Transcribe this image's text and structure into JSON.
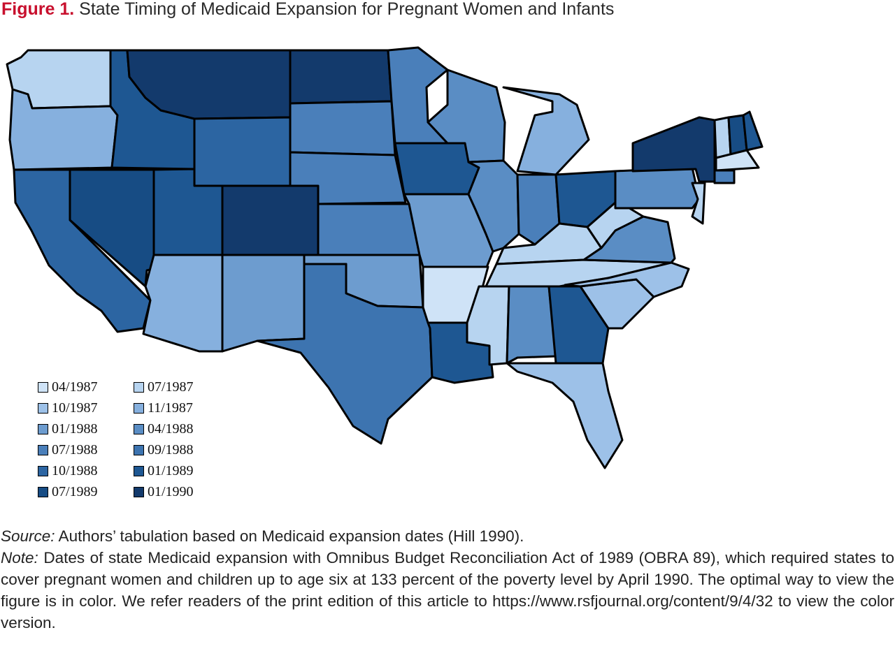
{
  "title": {
    "figure_label": "Figure 1.",
    "text": "State Timing of Medicaid Expansion for Pregnant Women and Infants"
  },
  "legend": [
    {
      "label": "04/1987",
      "color": "#cfe3f7"
    },
    {
      "label": "07/1987",
      "color": "#b7d4f0"
    },
    {
      "label": "10/1987",
      "color": "#9dc1e8"
    },
    {
      "label": "11/1987",
      "color": "#86b0de"
    },
    {
      "label": "01/1988",
      "color": "#6d9ccf"
    },
    {
      "label": "04/1988",
      "color": "#5a8dc4"
    },
    {
      "label": "07/1988",
      "color": "#4a7fba"
    },
    {
      "label": "09/1988",
      "color": "#3d74b0"
    },
    {
      "label": "10/1988",
      "color": "#2c65a2"
    },
    {
      "label": "01/1989",
      "color": "#1e5792"
    },
    {
      "label": "07/1989",
      "color": "#174c84"
    },
    {
      "label": "01/1990",
      "color": "#133a6c"
    }
  ],
  "states": [
    {
      "name": "WA",
      "date": "07/1987"
    },
    {
      "name": "OR",
      "date": "11/1987"
    },
    {
      "name": "CA",
      "date": "10/1988"
    },
    {
      "name": "ID",
      "date": "01/1989"
    },
    {
      "name": "NV",
      "date": "07/1989"
    },
    {
      "name": "MT",
      "date": "01/1990"
    },
    {
      "name": "WY",
      "date": "10/1988"
    },
    {
      "name": "UT",
      "date": "01/1989"
    },
    {
      "name": "CO",
      "date": "01/1990"
    },
    {
      "name": "AZ",
      "date": "11/1987"
    },
    {
      "name": "NM",
      "date": "01/1988"
    },
    {
      "name": "ND",
      "date": "01/1990"
    },
    {
      "name": "SD",
      "date": "07/1988"
    },
    {
      "name": "NE",
      "date": "07/1988"
    },
    {
      "name": "KS",
      "date": "07/1988"
    },
    {
      "name": "OK",
      "date": "01/1988"
    },
    {
      "name": "TX",
      "date": "09/1988"
    },
    {
      "name": "MN",
      "date": "07/1988"
    },
    {
      "name": "IA",
      "date": "01/1989"
    },
    {
      "name": "MO",
      "date": "01/1988"
    },
    {
      "name": "AR",
      "date": "04/1987"
    },
    {
      "name": "LA",
      "date": "01/1989"
    },
    {
      "name": "WI",
      "date": "04/1988"
    },
    {
      "name": "IL",
      "date": "04/1988"
    },
    {
      "name": "MI",
      "date": "11/1987"
    },
    {
      "name": "IN",
      "date": "07/1988"
    },
    {
      "name": "OH",
      "date": "01/1989"
    },
    {
      "name": "KY",
      "date": "07/1987"
    },
    {
      "name": "TN",
      "date": "07/1987"
    },
    {
      "name": "MS",
      "date": "07/1987"
    },
    {
      "name": "AL",
      "date": "04/1988"
    },
    {
      "name": "GA",
      "date": "01/1989"
    },
    {
      "name": "FL",
      "date": "10/1987"
    },
    {
      "name": "SC",
      "date": "10/1987"
    },
    {
      "name": "NC",
      "date": "10/1987"
    },
    {
      "name": "VA",
      "date": "04/1988"
    },
    {
      "name": "WV",
      "date": "07/1987"
    },
    {
      "name": "PA",
      "date": "04/1988"
    },
    {
      "name": "NY",
      "date": "01/1990"
    },
    {
      "name": "VT",
      "date": "07/1987"
    },
    {
      "name": "NH",
      "date": "07/1989"
    },
    {
      "name": "ME",
      "date": "01/1989"
    },
    {
      "name": "MA",
      "date": "04/1987"
    },
    {
      "name": "CT",
      "date": "07/1988"
    },
    {
      "name": "NJ",
      "date": "07/1987"
    }
  ],
  "notes": {
    "source_label": "Source:",
    "source_text": " Authors’ tabulation based on Medicaid expansion dates (Hill 1990).",
    "note_label": "Note:",
    "note_text": " Dates of state Medicaid expansion with Omnibus Budget Reconciliation Act of 1989 (OBRA 89), which required states to cover pregnant women and children up to age six at 133 percent of the poverty level by April 1990. The optimal way to view the figure is in color. We refer readers of the print edition of this article to https://www.rsfjournal.org/content/9/4/32 to view the color version."
  }
}
